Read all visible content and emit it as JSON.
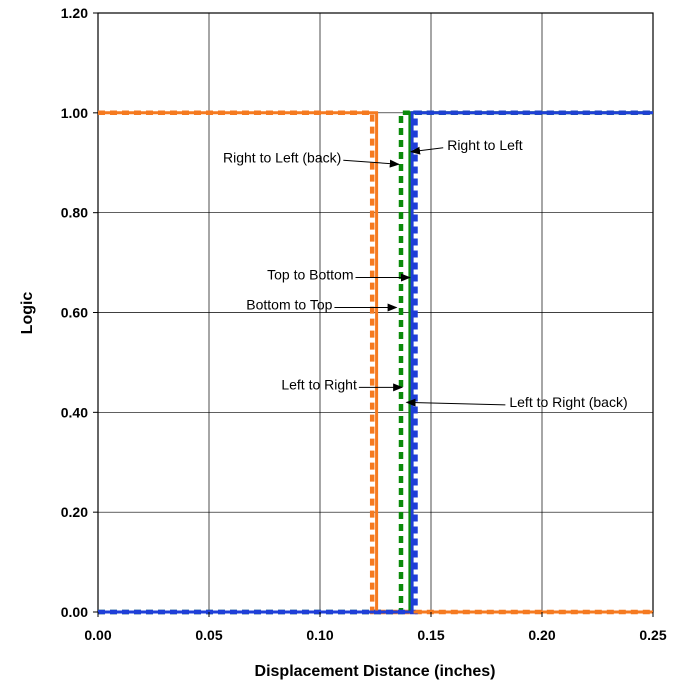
{
  "chart_data": {
    "type": "line",
    "title": "",
    "xlabel": "Displacement Distance (inches)",
    "ylabel": "Logic",
    "xlim": [
      0,
      0.25
    ],
    "ylim": [
      0,
      1.2
    ],
    "x_ticks": [
      "0.00",
      "0.05",
      "0.10",
      "0.15",
      "0.20",
      "0.25"
    ],
    "y_ticks": [
      "0.00",
      "0.20",
      "0.40",
      "0.60",
      "0.80",
      "1.00",
      "1.20"
    ],
    "x_tick_values": [
      0,
      0.05,
      0.1,
      0.15,
      0.2,
      0.25
    ],
    "y_tick_values": [
      0,
      0.2,
      0.4,
      0.6,
      0.8,
      1.0,
      1.2
    ],
    "grid": true,
    "legend": "none",
    "series": [
      {
        "name": "Top to Bottom",
        "color": "#f57a20",
        "dash": "solid",
        "x": [
          0,
          0.1255,
          0.1255,
          0.25
        ],
        "y": [
          1,
          1,
          0,
          0
        ]
      },
      {
        "name": "Bottom to Top",
        "color": "#f57a20",
        "dash": "dotted",
        "x": [
          0,
          0.1235,
          0.1235,
          0.25
        ],
        "y": [
          1,
          1,
          0,
          0
        ]
      },
      {
        "name": "Left to Right",
        "color": "#0a8a0a",
        "dash": "solid",
        "x": [
          0,
          0.1405,
          0.1405,
          0.25
        ],
        "y": [
          0,
          0,
          1,
          1
        ]
      },
      {
        "name": "Left to Right (back)",
        "color": "#0a8a0a",
        "dash": "dotted",
        "x": [
          0,
          0.1365,
          0.1365,
          0.25
        ],
        "y": [
          0,
          0,
          1,
          1
        ]
      },
      {
        "name": "Right to Left",
        "color": "#1f3fd8",
        "dash": "solid",
        "x": [
          0,
          0.1415,
          0.1415,
          0.25
        ],
        "y": [
          0,
          0,
          1,
          1
        ]
      },
      {
        "name": "Right to Left (back)",
        "color": "#1f3fd8",
        "dash": "dotted",
        "x": [
          0,
          0.143,
          0.143,
          0.25
        ],
        "y": [
          0,
          0,
          1,
          1
        ]
      }
    ],
    "annotations": [
      {
        "text": "Right to Left",
        "ax": 0.1555,
        "ay": 0.93,
        "tx": 0.141,
        "ty": 0.922,
        "anchor": "start"
      },
      {
        "text": "Right to Left (back)",
        "ax": 0.1105,
        "ay": 0.905,
        "tx": 0.1355,
        "ty": 0.897,
        "anchor": "end"
      },
      {
        "text": "Top to Bottom",
        "ax": 0.116,
        "ay": 0.67,
        "tx": 0.1405,
        "ty": 0.67,
        "anchor": "end"
      },
      {
        "text": "Bottom to Top",
        "ax": 0.1065,
        "ay": 0.61,
        "tx": 0.1345,
        "ty": 0.61,
        "anchor": "end"
      },
      {
        "text": "Left to Right",
        "ax": 0.1175,
        "ay": 0.45,
        "tx": 0.137,
        "ty": 0.45,
        "anchor": "end"
      },
      {
        "text": "Left to Right (back)",
        "ax": 0.1835,
        "ay": 0.415,
        "tx": 0.139,
        "ty": 0.42,
        "anchor": "start"
      }
    ]
  }
}
